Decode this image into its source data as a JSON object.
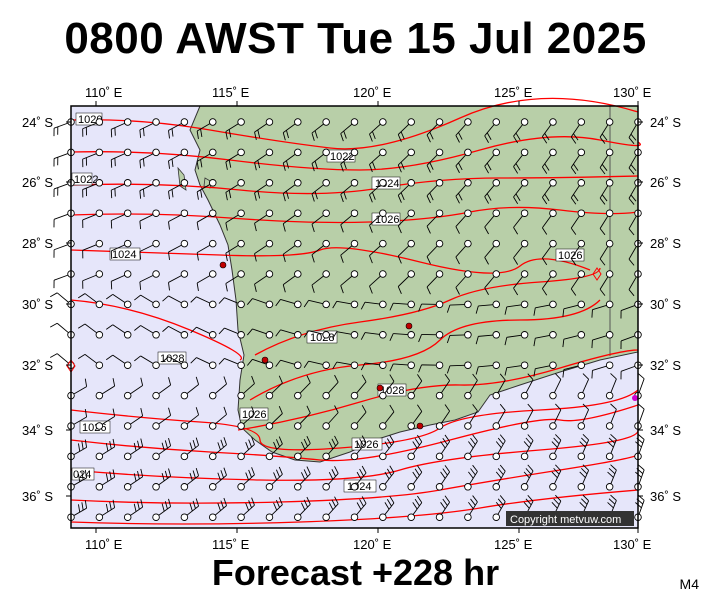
{
  "header": {
    "title": "0800 AWST Tue 15 Jul 2025"
  },
  "footer": {
    "forecast": "Forecast +228 hr",
    "model_code": "M4"
  },
  "copyright": "Copyright metvuw.com",
  "colors": {
    "ocean": "#e6e6fa",
    "land": "#b8cfa8",
    "isobar": "#ff0000",
    "frame": "#000000"
  },
  "map": {
    "lon_labels": [
      "110˚ E",
      "115˚ E",
      "120˚ E",
      "125˚ E",
      "130˚ E"
    ],
    "lat_labels": [
      "24˚ S",
      "26˚ S",
      "28˚ S",
      "30˚ S",
      "32˚ S",
      "34˚ S",
      "36˚ S"
    ],
    "isobar_labels": [
      "1020",
      "1022",
      "1022",
      "1024",
      "1024",
      "1026",
      "1026",
      "1028",
      "1028",
      "1028",
      "1026",
      "1026",
      "1026",
      "1024",
      "024"
    ]
  }
}
